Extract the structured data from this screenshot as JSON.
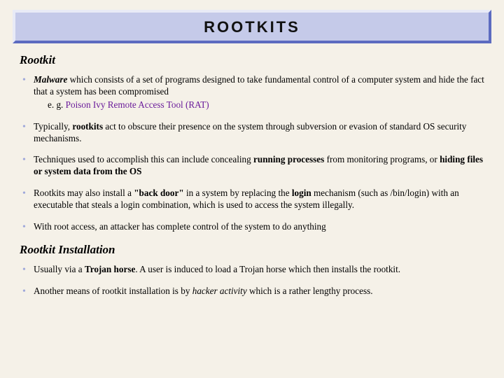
{
  "title": "ROOTKITS",
  "section1": {
    "heading": "Rootkit",
    "items": [
      {
        "prefix_bold_ital": "Malware",
        "rest": " which consists of a set of programs designed to take fundamental control of a computer system and hide the fact that a system has been compromised",
        "sub_prefix": "e. g. ",
        "sub_link": "Poison Ivy Remote Access Tool (RAT)"
      },
      {
        "pre": "Typically, ",
        "bold": "rootkits",
        "rest": " act to obscure their presence on the system through subversion or evasion of standard OS security mechanisms."
      },
      {
        "pre": "Techniques used to accomplish this can include concealing ",
        "bold1": "running processes",
        "mid": " from monitoring programs, or ",
        "bold2": "hiding files or system data from the OS"
      },
      {
        "pre": "Rootkits may also install a ",
        "bold1": "\"back door\"",
        "mid1": " in a system by replacing the ",
        "bold2": "login",
        "rest": " mechanism (such as /bin/login) with an executable that steals a login combination, which is used to access the system illegally."
      },
      {
        "text": "With root access, an attacker has complete control of the system to do anything"
      }
    ]
  },
  "section2": {
    "heading": "Rootkit Installation",
    "items": [
      {
        "pre": "Usually via a ",
        "bold": "Trojan horse",
        "rest": ". A user is induced to load a Trojan horse which then installs the rootkit."
      },
      {
        "pre": "Another means of rootkit installation is by ",
        "ital": "hacker activity",
        "rest": " which is a rather lengthy process."
      }
    ]
  },
  "colors": {
    "background": "#f5f1e8",
    "title_bg": "#c5cae9",
    "title_light_border": "#e8eaf6",
    "title_dark_border": "#5c6bc0",
    "bullet": "#9fa8da",
    "link": "#6a1b9a",
    "text": "#000000"
  },
  "fonts": {
    "title_family": "Arial Black",
    "title_size_pt": 17,
    "body_family": "Georgia",
    "body_size_pt": 10,
    "heading_size_pt": 13
  }
}
